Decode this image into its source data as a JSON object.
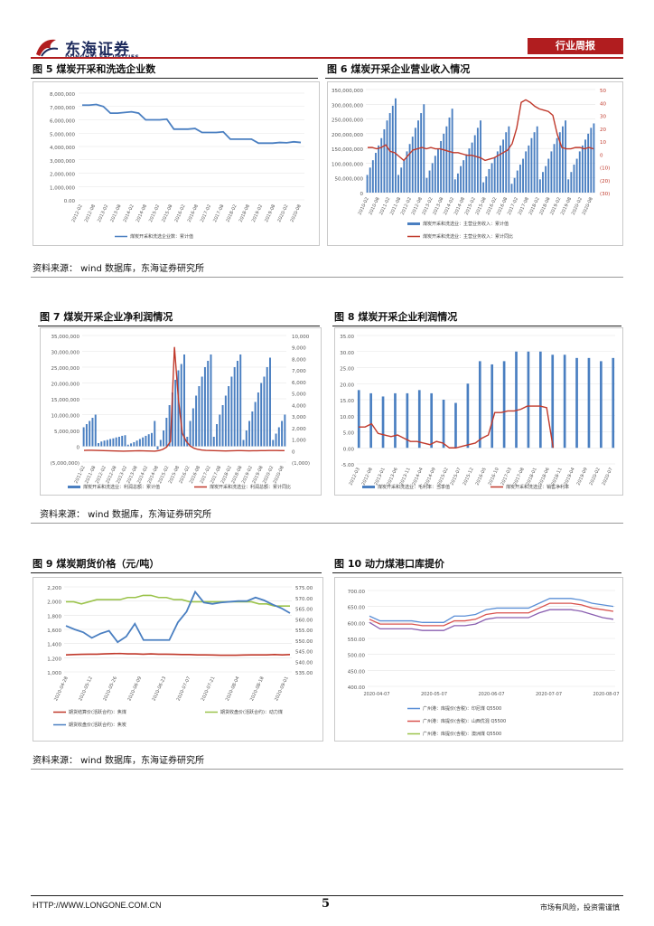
{
  "header": {
    "logo_text": "东海证券",
    "logo_sub": "DONGHAI SECURITIES",
    "tag": "行业周报"
  },
  "figures": {
    "f5": {
      "title": "图 5   煤炭开采和洗选企业数",
      "legend": "煤炭开采和洗选企业数：累计值"
    },
    "f6": {
      "title": "图 6   煤炭开采企业营业收入情况",
      "legend": [
        "煤炭开采和洗选业：主营业务收入：累计值",
        "煤炭开采和洗选业：主营业务收入：累计同比"
      ]
    },
    "f7": {
      "title": "图 7   煤炭开采企业净利润情况",
      "legend": [
        "煤炭开采和洗选业：利润总额：累计值",
        "煤炭开采和洗选业：利润总额：累计同比"
      ]
    },
    "f8": {
      "title": "图 8   煤炭开采企业利润情况",
      "legend": [
        "煤炭开采和洗选业：毛利率：当季值",
        "煤炭开采和洗选业：销售净利率"
      ]
    },
    "f9": {
      "title": "图 9   煤炭期货价格（元/吨）",
      "legend": [
        "期货结算价(活跃合约)：焦煤",
        "期货收盘价(活跃合约)：动力煤",
        "期货收盘价(活跃合约)：焦炭"
      ]
    },
    "f10": {
      "title": "图 10   动力煤港口库提价",
      "legend": [
        "广州港：库提价(含税)：印尼煤 Q5500",
        "广州港：库提价(含税)：山西优混 Q5500",
        "广州港：库提价(含税)：澳洲煤 Q5500"
      ]
    }
  },
  "sources": [
    "资料来源：  wind 数据库，东海证券研究所",
    "资料来源：  wind 数据库，东海证券研究所",
    "资料来源：  wind 数据库，东海证券研究所"
  ],
  "footer": {
    "url": "HTTP://WWW.LONGONE.COM.CN",
    "page": "5",
    "disclaimer": "市场有风险，投资需谨慎"
  },
  "colors": {
    "brand_red": "#b11d1f",
    "bar_blue": "#4a7fc1",
    "line_red": "#c0392b",
    "line_green": "#9bc34b"
  },
  "chart_data": [
    {
      "id": "f5",
      "type": "line",
      "y_ticks": [
        "0.00",
        "1,000,000",
        "2,000,000",
        "3,000,000",
        "4,000,000",
        "5,000,000",
        "6,000,000",
        "7,000,000",
        "8,000,000"
      ],
      "ylim": [
        0,
        8000000
      ],
      "values": [
        7100000,
        7100000,
        7150000,
        7000000,
        6500000,
        6500000,
        6550000,
        6600000,
        6500000,
        6000000,
        6000000,
        6000000,
        6050000,
        5300000,
        5300000,
        5300000,
        5350000,
        5050000,
        5050000,
        5050000,
        5100000,
        4550000,
        4550000,
        4550000,
        4550000,
        4250000,
        4250000,
        4250000,
        4300000,
        4280000,
        4350000,
        4300000
      ],
      "x_labels": [
        "2012-02",
        "2012-08",
        "2013-02",
        "2013-08",
        "2014-02",
        "2014-08",
        "2015-02",
        "2015-08",
        "2016-02",
        "2016-08",
        "2017-02",
        "2017-08",
        "2018-02",
        "2018-08",
        "2019-02",
        "2019-08",
        "2020-02",
        "2020-08"
      ]
    },
    {
      "id": "f6",
      "type": "bar+line",
      "y_left": [
        "0",
        "50,000,000",
        "100,000,000",
        "150,000,000",
        "200,000,000",
        "250,000,000",
        "300,000,000",
        "350,000,000"
      ],
      "y_right": [
        "(30)",
        "(20)",
        "(10)",
        "0",
        "10",
        "20",
        "30",
        "40",
        "50"
      ],
      "bars": [
        60000000,
        85000000,
        110000000,
        135000000,
        160000000,
        185000000,
        215000000,
        245000000,
        270000000,
        295000000,
        320000000,
        60000000,
        85000000,
        110000000,
        140000000,
        165000000,
        190000000,
        220000000,
        245000000,
        270000000,
        300000000,
        50000000,
        75000000,
        100000000,
        125000000,
        150000000,
        175000000,
        200000000,
        225000000,
        255000000,
        285000000,
        45000000,
        65000000,
        90000000,
        110000000,
        130000000,
        150000000,
        170000000,
        195000000,
        220000000,
        245000000,
        35000000,
        55000000,
        80000000,
        100000000,
        120000000,
        140000000,
        160000000,
        180000000,
        205000000,
        225000000,
        30000000,
        50000000,
        75000000,
        95000000,
        115000000,
        140000000,
        160000000,
        185000000,
        205000000,
        225000000,
        45000000,
        70000000,
        90000000,
        115000000,
        140000000,
        165000000,
        185000000,
        205000000,
        225000000,
        245000000,
        45000000,
        70000000,
        95000000,
        115000000,
        140000000,
        160000000,
        180000000,
        200000000,
        220000000,
        235000000
      ],
      "line": [
        5,
        5,
        4,
        5,
        7,
        2,
        1,
        -2,
        -5,
        -1,
        3,
        4,
        5,
        4,
        5,
        4,
        4,
        3,
        2,
        1,
        1,
        0,
        -1,
        -1,
        -2,
        -3,
        -5,
        -4,
        -3,
        -1,
        1,
        3,
        8,
        20,
        40,
        42,
        40,
        37,
        35,
        34,
        33,
        30,
        15,
        5,
        4,
        4,
        5,
        5,
        4,
        5,
        4
      ],
      "x_labels": [
        "2010-02",
        "2010-08",
        "2011-02",
        "2011-08",
        "2012-02",
        "2012-08",
        "2013-02",
        "2013-08",
        "2014-02",
        "2014-08",
        "2015-02",
        "2015-08",
        "2016-02",
        "2016-08",
        "2017-02",
        "2017-08",
        "2018-02",
        "2018-08",
        "2019-02",
        "2019-08",
        "2020-02",
        "2020-08"
      ]
    },
    {
      "id": "f7",
      "type": "bar+line",
      "y_left": [
        "(5,000,000)",
        "0",
        "5,000,000",
        "10,000,000",
        "15,000,000",
        "20,000,000",
        "25,000,000",
        "30,000,000",
        "35,000,000"
      ],
      "y_right": [
        "(1,000)",
        "0",
        "1,000",
        "2,000",
        "3,000",
        "4,000",
        "5,000",
        "6,000",
        "7,000",
        "8,000",
        "9,000",
        "10,000"
      ],
      "bars": [
        6000000,
        7000000,
        8000000,
        9000000,
        10000000,
        1000000,
        1500000,
        1800000,
        2000000,
        2300000,
        2500000,
        2800000,
        3000000,
        3300000,
        3500000,
        500000,
        900000,
        1300000,
        1800000,
        2300000,
        2800000,
        3300000,
        3800000,
        4200000,
        8000000,
        -1000000,
        2000000,
        5000000,
        9000000,
        13000000,
        17000000,
        21000000,
        24000000,
        26000000,
        29000000,
        3000000,
        8000000,
        12000000,
        16000000,
        19000000,
        22000000,
        25000000,
        27000000,
        29000000,
        3000000,
        7000000,
        10000000,
        13000000,
        16000000,
        19000000,
        22000000,
        25000000,
        27000000,
        29000000,
        2000000,
        5000000,
        8000000,
        11000000,
        14000000,
        17000000,
        20000000,
        22000000,
        25000000,
        28000000,
        2000000,
        4000000,
        6000000,
        8000000,
        10000000
      ],
      "line": [
        20,
        30,
        25,
        15,
        10,
        0,
        -10,
        -20,
        -30,
        -40,
        -50,
        -40,
        -30,
        -20,
        -10,
        -20,
        -30,
        -40,
        -50,
        0,
        100,
        300,
        800,
        9000,
        4500,
        1500,
        800,
        400,
        200,
        100,
        50,
        20,
        10,
        0,
        -10,
        -20,
        -30,
        -20,
        -10,
        0,
        -5,
        -10,
        -20,
        -15,
        -10,
        -5,
        0,
        5,
        10,
        5,
        0,
        -5
      ],
      "x_labels": [
        "2011-02",
        "2011-08",
        "2012-02",
        "2012-08",
        "2013-02",
        "2013-08",
        "2014-02",
        "2014-08",
        "2015-02",
        "2015-08",
        "2016-02",
        "2016-08",
        "2017-02",
        "2017-08",
        "2018-02",
        "2018-08",
        "2019-02",
        "2019-08",
        "2020-02",
        "2020-08"
      ]
    },
    {
      "id": "f8",
      "type": "bar+line",
      "y_ticks": [
        "-5.00",
        "0.00",
        "5.00",
        "10.00",
        "15.00",
        "20.00",
        "25.00",
        "30.00",
        "35.00"
      ],
      "ylim": [
        -5,
        35
      ],
      "bars": [
        18,
        0,
        0,
        17,
        0,
        0,
        16,
        0,
        0,
        17,
        0,
        0,
        17,
        0,
        0,
        18,
        0,
        0,
        17,
        0,
        0,
        15,
        0,
        0,
        14,
        0,
        0,
        20,
        0,
        0,
        27,
        0,
        0,
        26,
        0,
        0,
        27,
        0,
        0,
        30,
        0,
        0,
        30,
        0,
        0,
        30,
        0,
        0,
        29,
        0,
        0,
        29,
        0,
        0,
        28,
        0,
        0,
        28,
        0,
        0,
        27,
        0,
        0,
        28
      ],
      "line": [
        6.5,
        6.5,
        7.5,
        4.5,
        4,
        3.5,
        4,
        3,
        2,
        2,
        1.5,
        1,
        2,
        1.5,
        0,
        0,
        0.5,
        1,
        1.5,
        3,
        4,
        11,
        11,
        11.5,
        11.5,
        12,
        13,
        13,
        13,
        12.5,
        0
      ],
      "x_labels": [
        "2012-03",
        "2012-08",
        "2013-01",
        "2013-06",
        "2013-11",
        "2014-04",
        "2014-09",
        "2015-02",
        "2015-07",
        "2015-12",
        "2016-05",
        "2016-10",
        "2017-03",
        "2017-08",
        "2018-01",
        "2018-06",
        "2018-11",
        "2019-04",
        "2019-09",
        "2020-02",
        "2020-07"
      ]
    },
    {
      "id": "f9",
      "type": "line",
      "y_left": [
        "1,000",
        "1,200",
        "1,400",
        "1,600",
        "1,800",
        "2,000",
        "2,200"
      ],
      "y_right": [
        "535.00",
        "540.00",
        "545.00",
        "550.00",
        "555.00",
        "560.00",
        "565.00",
        "570.00",
        "575.00"
      ],
      "series": [
        {
          "name": "期货结算价(活跃合约)：焦煤",
          "values": [
            1240,
            1245,
            1248,
            1250,
            1250,
            1255,
            1258,
            1260,
            1255,
            1255,
            1250,
            1255,
            1250,
            1250,
            1248,
            1245,
            1245,
            1240,
            1240,
            1238,
            1235,
            1235,
            1236,
            1238,
            1240,
            1240,
            1240,
            1245,
            1240,
            1245
          ]
        },
        {
          "name": "期货收盘价(活跃合约)：动力煤",
          "values": [
            568,
            568,
            567,
            568,
            569,
            569,
            569,
            569,
            570,
            570,
            571,
            571,
            570,
            570,
            569,
            569,
            568,
            568,
            568,
            568,
            568,
            568,
            568,
            568,
            568,
            567,
            567,
            566,
            566,
            566
          ]
        },
        {
          "name": "期货收盘价(活跃合约)：焦炭",
          "values": [
            1650,
            1600,
            1560,
            1480,
            1540,
            1580,
            1420,
            1500,
            1680,
            1450,
            1450,
            1450,
            1450,
            1700,
            1850,
            2130,
            1980,
            1960,
            1980,
            1990,
            2000,
            2000,
            2050,
            2010,
            1950,
            1900,
            1830
          ]
        }
      ],
      "x_labels": [
        "2020-04-28",
        "2020-05-12",
        "2020-05-26",
        "2020-06-09",
        "2020-06-23",
        "2020-07-07",
        "2020-07-21",
        "2020-08-04",
        "2020-08-18",
        "2020-09-01"
      ]
    },
    {
      "id": "f10",
      "type": "line",
      "y_ticks": [
        "400.00",
        "450.00",
        "500.00",
        "550.00",
        "600.00",
        "650.00",
        "700.00"
      ],
      "ylim": [
        400,
        700
      ],
      "series": [
        {
          "name": "广州港：库提价(含税)：印尼煤 Q5500",
          "values": [
            620,
            605,
            605,
            605,
            605,
            600,
            600,
            600,
            620,
            620,
            625,
            640,
            645,
            645,
            645,
            645,
            660,
            675,
            675,
            675,
            670,
            660,
            655,
            650
          ]
        },
        {
          "name": "广州港：库提价(含税)：山西优混 Q5500",
          "values": [
            610,
            595,
            595,
            595,
            595,
            590,
            590,
            590,
            605,
            605,
            610,
            625,
            630,
            630,
            630,
            630,
            645,
            660,
            660,
            660,
            655,
            645,
            640,
            635
          ]
        },
        {
          "name": "广州港：库提价(含税)：澳洲煤 Q5500",
          "values": [
            600,
            580,
            580,
            580,
            580,
            575,
            575,
            575,
            590,
            590,
            595,
            610,
            615,
            615,
            615,
            615,
            630,
            640,
            640,
            640,
            635,
            625,
            615,
            610
          ]
        }
      ],
      "x_labels": [
        "2020-04-07",
        "2020-05-07",
        "2020-06-07",
        "2020-07-07",
        "2020-08-07"
      ]
    }
  ]
}
